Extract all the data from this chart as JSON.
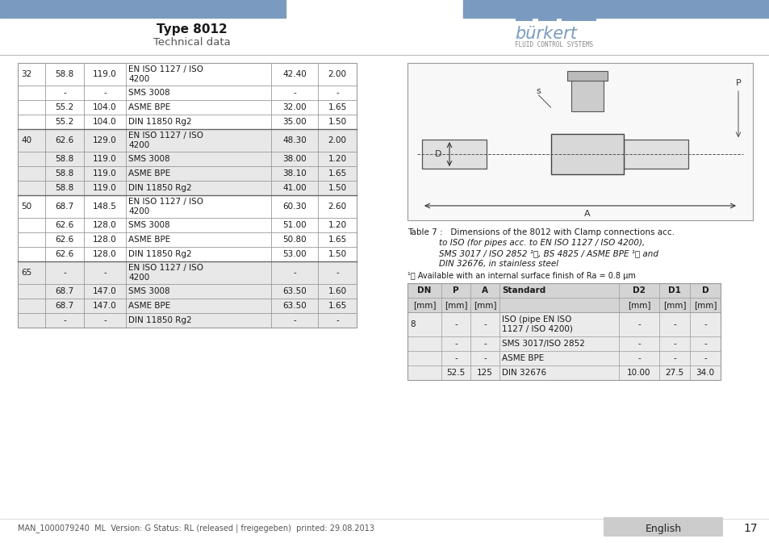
{
  "title": "Type 8012",
  "subtitle": "Technical data",
  "header_bar_color": "#7a9bbf",
  "burkert_color": "#7a9bbf",
  "footer_text": "MAN_1000079240  ML  Version: G Status: RL (released | freigegeben)  printed: 29.08.2013",
  "footer_lang": "English",
  "footer_page": "17",
  "left_table_data": [
    [
      "32",
      "58.8",
      "119.0",
      "EN ISO 1127 / ISO\n4200",
      "42.40",
      "2.00"
    ],
    [
      "",
      "-",
      "-",
      "SMS 3008",
      "-",
      "-"
    ],
    [
      "",
      "55.2",
      "104.0",
      "ASME BPE",
      "32.00",
      "1.65"
    ],
    [
      "",
      "55.2",
      "104.0",
      "DIN 11850 Rg2",
      "35.00",
      "1.50"
    ],
    [
      "40",
      "62.6",
      "129.0",
      "EN ISO 1127 / ISO\n4200",
      "48.30",
      "2.00"
    ],
    [
      "",
      "58.8",
      "119.0",
      "SMS 3008",
      "38.00",
      "1.20"
    ],
    [
      "",
      "58.8",
      "119.0",
      "ASME BPE",
      "38.10",
      "1.65"
    ],
    [
      "",
      "58.8",
      "119.0",
      "DIN 11850 Rg2",
      "41.00",
      "1.50"
    ],
    [
      "50",
      "68.7",
      "148.5",
      "EN ISO 1127 / ISO\n4200",
      "60.30",
      "2.60"
    ],
    [
      "",
      "62.6",
      "128.0",
      "SMS 3008",
      "51.00",
      "1.20"
    ],
    [
      "",
      "62.6",
      "128.0",
      "ASME BPE",
      "50.80",
      "1.65"
    ],
    [
      "",
      "62.6",
      "128.0",
      "DIN 11850 Rg2",
      "53.00",
      "1.50"
    ],
    [
      "65",
      "-",
      "-",
      "EN ISO 1127 / ISO\n4200",
      "-",
      "-"
    ],
    [
      "",
      "68.7",
      "147.0",
      "SMS 3008",
      "63.50",
      "1.60"
    ],
    [
      "",
      "68.7",
      "147.0",
      "ASME BPE",
      "63.50",
      "1.65"
    ],
    [
      "",
      "-",
      "-",
      "DIN 11850 Rg2",
      "-",
      "-"
    ]
  ],
  "left_table_row_colors": [
    "#ffffff",
    "#ffffff",
    "#ffffff",
    "#ffffff",
    "#e8e8e8",
    "#e8e8e8",
    "#e8e8e8",
    "#e8e8e8",
    "#ffffff",
    "#ffffff",
    "#ffffff",
    "#ffffff",
    "#e8e8e8",
    "#e8e8e8",
    "#e8e8e8",
    "#e8e8e8"
  ],
  "left_row_heights": [
    28,
    18,
    18,
    18,
    28,
    18,
    18,
    18,
    28,
    18,
    18,
    18,
    28,
    18,
    18,
    18
  ],
  "right_table2_data": [
    [
      "8",
      "-",
      "-",
      "ISO (pipe EN ISO\n1127 / ISO 4200)",
      "-",
      "-",
      "-"
    ],
    [
      "",
      "-",
      "-",
      "SMS 3017/ISO 2852",
      "-",
      "-",
      "-"
    ],
    [
      "",
      "-",
      "-",
      "ASME BPE",
      "-",
      "-",
      "-"
    ],
    [
      "",
      "52.5",
      "125",
      "DIN 32676",
      "10.00",
      "27.5",
      "34.0"
    ]
  ],
  "divider_color": "#aaaaaa"
}
